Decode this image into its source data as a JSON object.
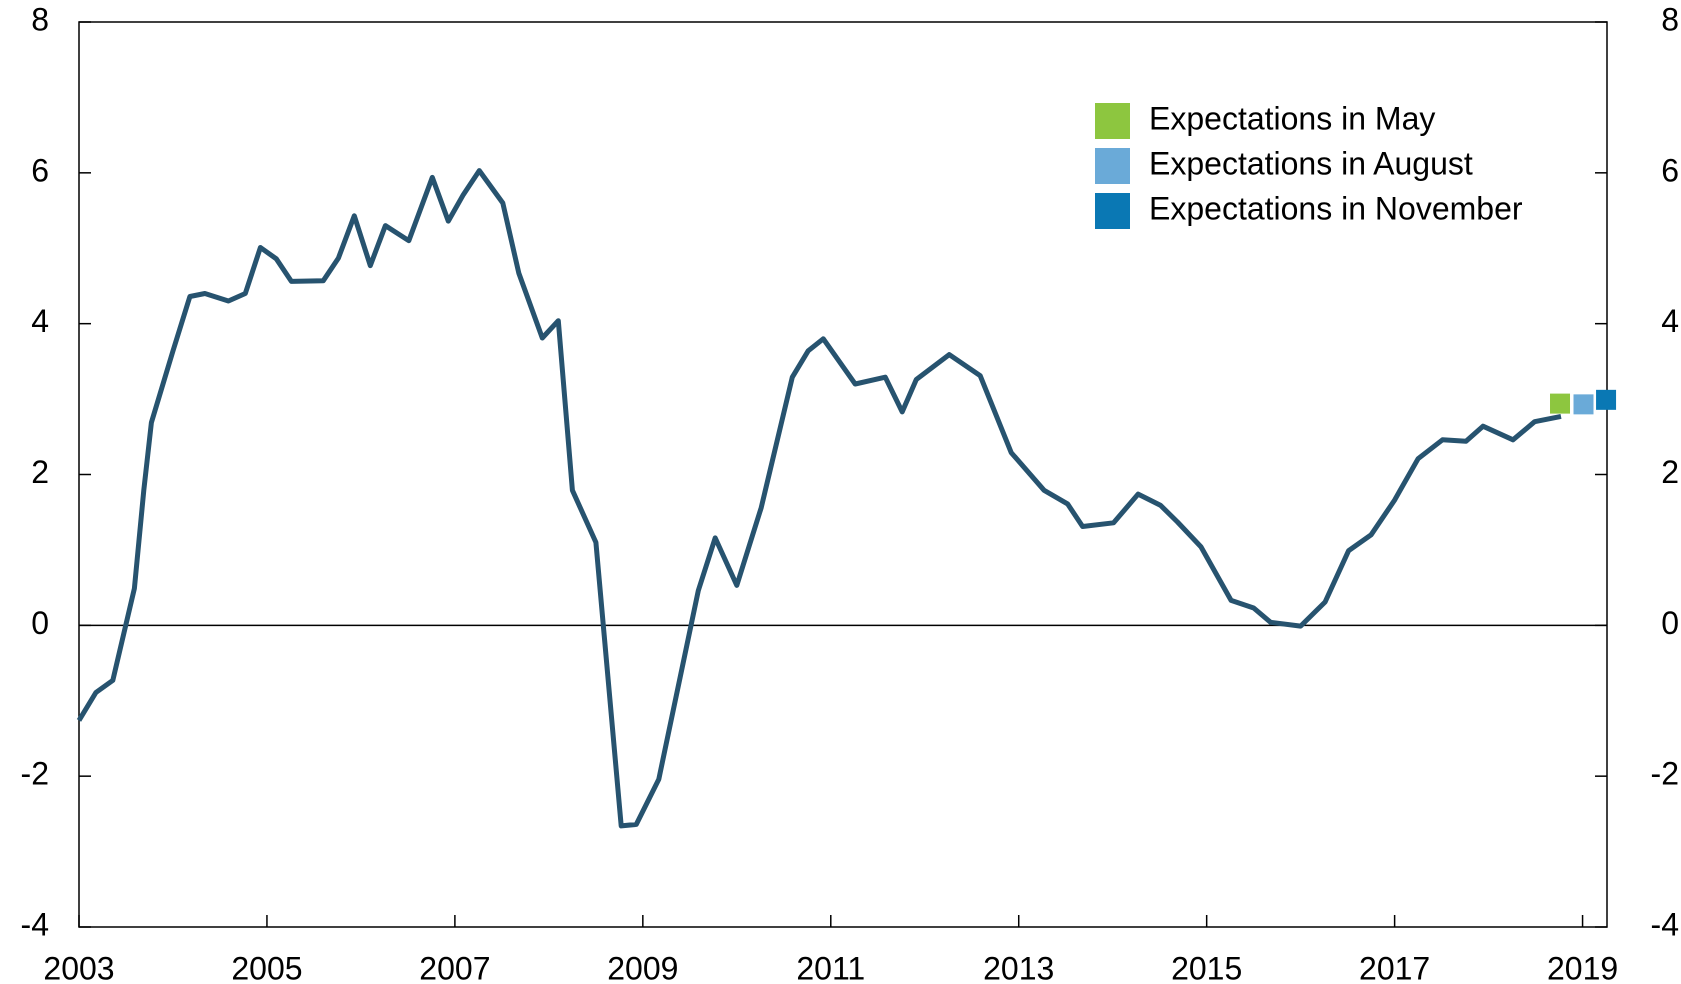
{
  "chart_data": {
    "type": "line",
    "x_is_year": true,
    "xlim": [
      2003,
      2019.26
    ],
    "xticks": [
      2003,
      2005,
      2007,
      2009,
      2011,
      2013,
      2015,
      2017,
      2019
    ],
    "ylim": [
      -4,
      8
    ],
    "yticks": [
      -4,
      -2,
      0,
      2,
      4,
      6,
      8
    ],
    "y2lim": [
      -4,
      8
    ],
    "y2ticks": [
      -4,
      -2,
      0,
      2,
      4,
      6,
      8
    ],
    "legend": "upper right",
    "series": [
      {
        "color": "#27536f",
        "x": [
          2003.0,
          2003.18,
          2003.36,
          2003.59,
          2003.69,
          2003.77,
          2004.0,
          2004.18,
          2004.34,
          2004.59,
          2004.77,
          2004.93,
          2005.1,
          2005.26,
          2005.6,
          2005.76,
          2005.93,
          2006.1,
          2006.26,
          2006.51,
          2006.76,
          2006.93,
          2007.09,
          2007.26,
          2007.51,
          2007.68,
          2007.93,
          2008.1,
          2008.25,
          2008.5,
          2008.77,
          2008.93,
          2009.17,
          2009.59,
          2009.77,
          2010.0,
          2010.26,
          2010.59,
          2010.76,
          2010.92,
          2011.26,
          2011.58,
          2011.76,
          2011.91,
          2012.26,
          2012.59,
          2012.92,
          2013.27,
          2013.52,
          2013.68,
          2014.01,
          2014.27,
          2014.51,
          2014.69,
          2014.94,
          2015.26,
          2015.5,
          2015.68,
          2016.0,
          2016.26,
          2016.51,
          2016.75,
          2017.0,
          2017.25,
          2017.51,
          2017.76,
          2017.94,
          2018.26,
          2018.49,
          2018.77
        ],
        "values": [
          -1.26,
          -0.89,
          -0.73,
          0.49,
          1.79,
          2.69,
          3.64,
          4.36,
          4.4,
          4.3,
          4.4,
          5.01,
          4.86,
          4.56,
          4.57,
          4.87,
          5.43,
          4.77,
          5.3,
          5.1,
          5.94,
          5.36,
          5.71,
          6.03,
          5.6,
          4.67,
          3.81,
          4.04,
          1.79,
          1.1,
          -2.66,
          -2.64,
          -2.04,
          0.46,
          1.16,
          0.53,
          1.56,
          3.29,
          3.64,
          3.8,
          3.2,
          3.29,
          2.83,
          3.26,
          3.59,
          3.31,
          2.29,
          1.79,
          1.61,
          1.31,
          1.36,
          1.74,
          1.59,
          1.37,
          1.04,
          0.33,
          0.23,
          0.04,
          -0.01,
          0.31,
          0.99,
          1.2,
          1.66,
          2.21,
          2.46,
          2.44,
          2.64,
          2.46,
          2.7,
          2.77
        ]
      },
      {
        "name": "Expectations in May",
        "marker": "square",
        "color": "#8dc63f",
        "x": [
          2018.76
        ],
        "values": [
          2.94
        ]
      },
      {
        "name": "Expectations in August",
        "marker": "square",
        "color": "#6aaad8",
        "x": [
          2019.01
        ],
        "values": [
          2.93
        ]
      },
      {
        "name": "Expectations in November",
        "marker": "square",
        "color": "#0a78b4",
        "x": [
          2019.25
        ],
        "values": [
          2.99
        ]
      }
    ]
  }
}
